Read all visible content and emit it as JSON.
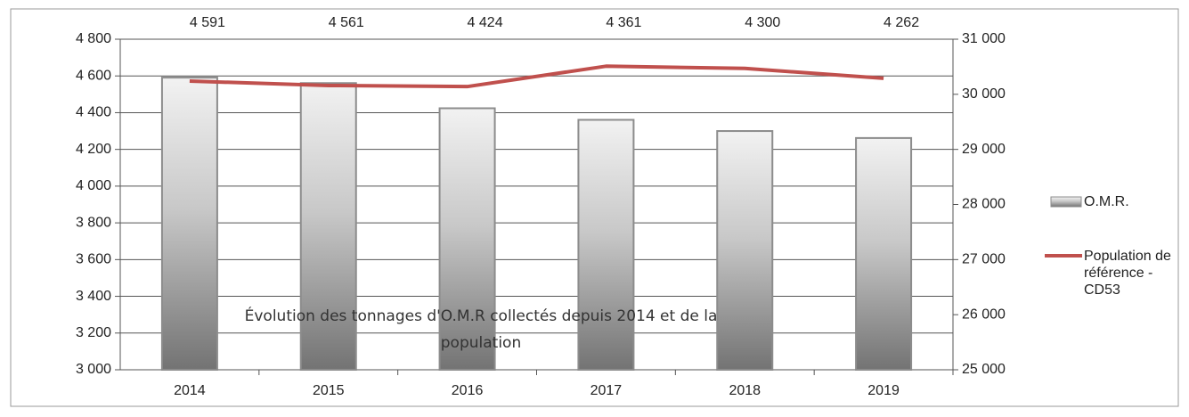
{
  "chart_data": {
    "type": "bar-line",
    "title": "Évolution des tonnages d'O.M.R collectés depuis 2014 et de la population",
    "categories": [
      "2014",
      "2015",
      "2016",
      "2017",
      "2018",
      "2019"
    ],
    "series": [
      {
        "name": "O.M.R.",
        "type": "bar",
        "color": "#8c8c8c",
        "values": [
          4591,
          4561,
          4424,
          4361,
          4300,
          4262
        ],
        "value_labels": [
          "4 591",
          "4 561",
          "4 424",
          "4 361",
          "4 300",
          "4 262"
        ]
      },
      {
        "name": "Population de référence - CD53",
        "type": "line",
        "axis": "y2",
        "color": "#c0504d",
        "values": [
          30240,
          30160,
          30140,
          30510,
          30470,
          30290
        ]
      }
    ],
    "ylim": [
      3000,
      4800
    ],
    "yticks": [
      {
        "value": 3000,
        "label": "3 000"
      },
      {
        "value": 3200,
        "label": "3 200"
      },
      {
        "value": 3400,
        "label": "3 400"
      },
      {
        "value": 3600,
        "label": "3 600"
      },
      {
        "value": 3800,
        "label": "3 800"
      },
      {
        "value": 4000,
        "label": "4 000"
      },
      {
        "value": 4200,
        "label": "4 200"
      },
      {
        "value": 4400,
        "label": "4 400"
      },
      {
        "value": 4600,
        "label": "4 600"
      },
      {
        "value": 4800,
        "label": "4 800"
      }
    ],
    "y2lim": [
      25000,
      31000
    ],
    "y2ticks": [
      {
        "value": 25000,
        "label": "25 000"
      },
      {
        "value": 26000,
        "label": "26 000"
      },
      {
        "value": 27000,
        "label": "27 000"
      },
      {
        "value": 28000,
        "label": "28 000"
      },
      {
        "value": 29000,
        "label": "29 000"
      },
      {
        "value": 30000,
        "label": "30 000"
      },
      {
        "value": 31000,
        "label": "31 000"
      }
    ],
    "grid": true,
    "legend": "right"
  }
}
